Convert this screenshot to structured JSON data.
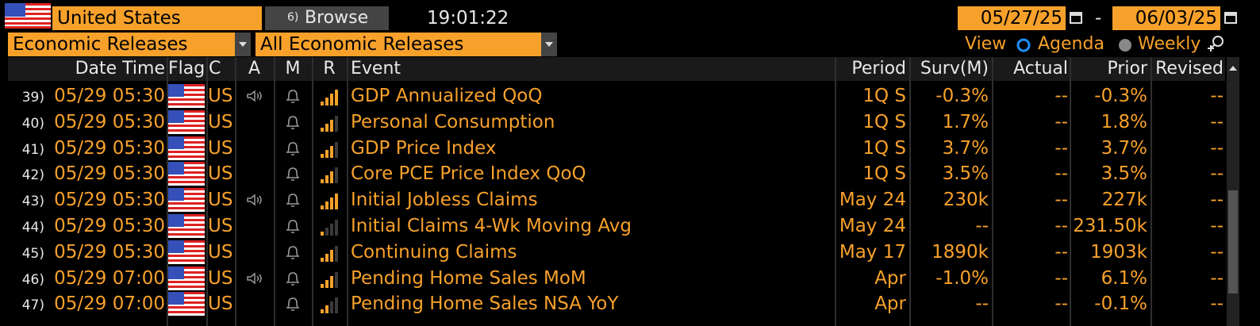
{
  "header": {
    "country": "United States",
    "browse_key": "6)",
    "browse": "Browse",
    "time": "19:01:22",
    "date_from": "05/27/25",
    "date_sep": "-",
    "date_to": "06/03/25"
  },
  "filters": {
    "category": "Economic Releases",
    "subcategory": "All Economic Releases",
    "view_label": "View",
    "view_options": [
      "Agenda",
      "Weekly"
    ]
  },
  "table": {
    "columns": [
      "Date Time",
      "Flag",
      "C",
      "A",
      "M",
      "R",
      "Event",
      "Period",
      "Surv(M)",
      "Actual",
      "Prior",
      "Revised"
    ],
    "rows": [
      {
        "num": "39)",
        "datetime": "05/29 05:30",
        "country": "US",
        "audio": true,
        "relevance": 4,
        "event": "GDP Annualized QoQ",
        "period": "1Q S",
        "survey": "-0.3%",
        "actual": "--",
        "prior": "-0.3%",
        "revised": "--"
      },
      {
        "num": "40)",
        "datetime": "05/29 05:30",
        "country": "US",
        "audio": false,
        "relevance": 3,
        "event": "Personal Consumption",
        "period": "1Q S",
        "survey": "1.7%",
        "actual": "--",
        "prior": "1.8%",
        "revised": "--"
      },
      {
        "num": "41)",
        "datetime": "05/29 05:30",
        "country": "US",
        "audio": false,
        "relevance": 3,
        "event": "GDP Price Index",
        "period": "1Q S",
        "survey": "3.7%",
        "actual": "--",
        "prior": "3.7%",
        "revised": "--"
      },
      {
        "num": "42)",
        "datetime": "05/29 05:30",
        "country": "US",
        "audio": false,
        "relevance": 3,
        "event": "Core PCE Price Index QoQ",
        "period": "1Q S",
        "survey": "3.5%",
        "actual": "--",
        "prior": "3.5%",
        "revised": "--"
      },
      {
        "num": "43)",
        "datetime": "05/29 05:30",
        "country": "US",
        "audio": true,
        "relevance": 4,
        "event": "Initial Jobless Claims",
        "period": "May 24",
        "survey": "230k",
        "actual": "--",
        "prior": "227k",
        "revised": "--"
      },
      {
        "num": "44)",
        "datetime": "05/29 05:30",
        "country": "US",
        "audio": false,
        "relevance": 1,
        "event": "Initial Claims 4-Wk Moving Avg",
        "period": "May 24",
        "survey": "--",
        "actual": "--",
        "prior": "231.50k",
        "revised": "--"
      },
      {
        "num": "45)",
        "datetime": "05/29 05:30",
        "country": "US",
        "audio": false,
        "relevance": 3,
        "event": "Continuing Claims",
        "period": "May 17",
        "survey": "1890k",
        "actual": "--",
        "prior": "1903k",
        "revised": "--"
      },
      {
        "num": "46)",
        "datetime": "05/29 07:00",
        "country": "US",
        "audio": true,
        "relevance": 3,
        "event": "Pending Home Sales MoM",
        "period": "Apr",
        "survey": "-1.0%",
        "actual": "--",
        "prior": "6.1%",
        "revised": "--"
      },
      {
        "num": "47)",
        "datetime": "05/29 07:00",
        "country": "US",
        "audio": false,
        "relevance": 2,
        "event": "Pending Home Sales NSA YoY",
        "period": "Apr",
        "survey": "--",
        "actual": "--",
        "prior": "-0.1%",
        "revised": "--"
      }
    ]
  }
}
